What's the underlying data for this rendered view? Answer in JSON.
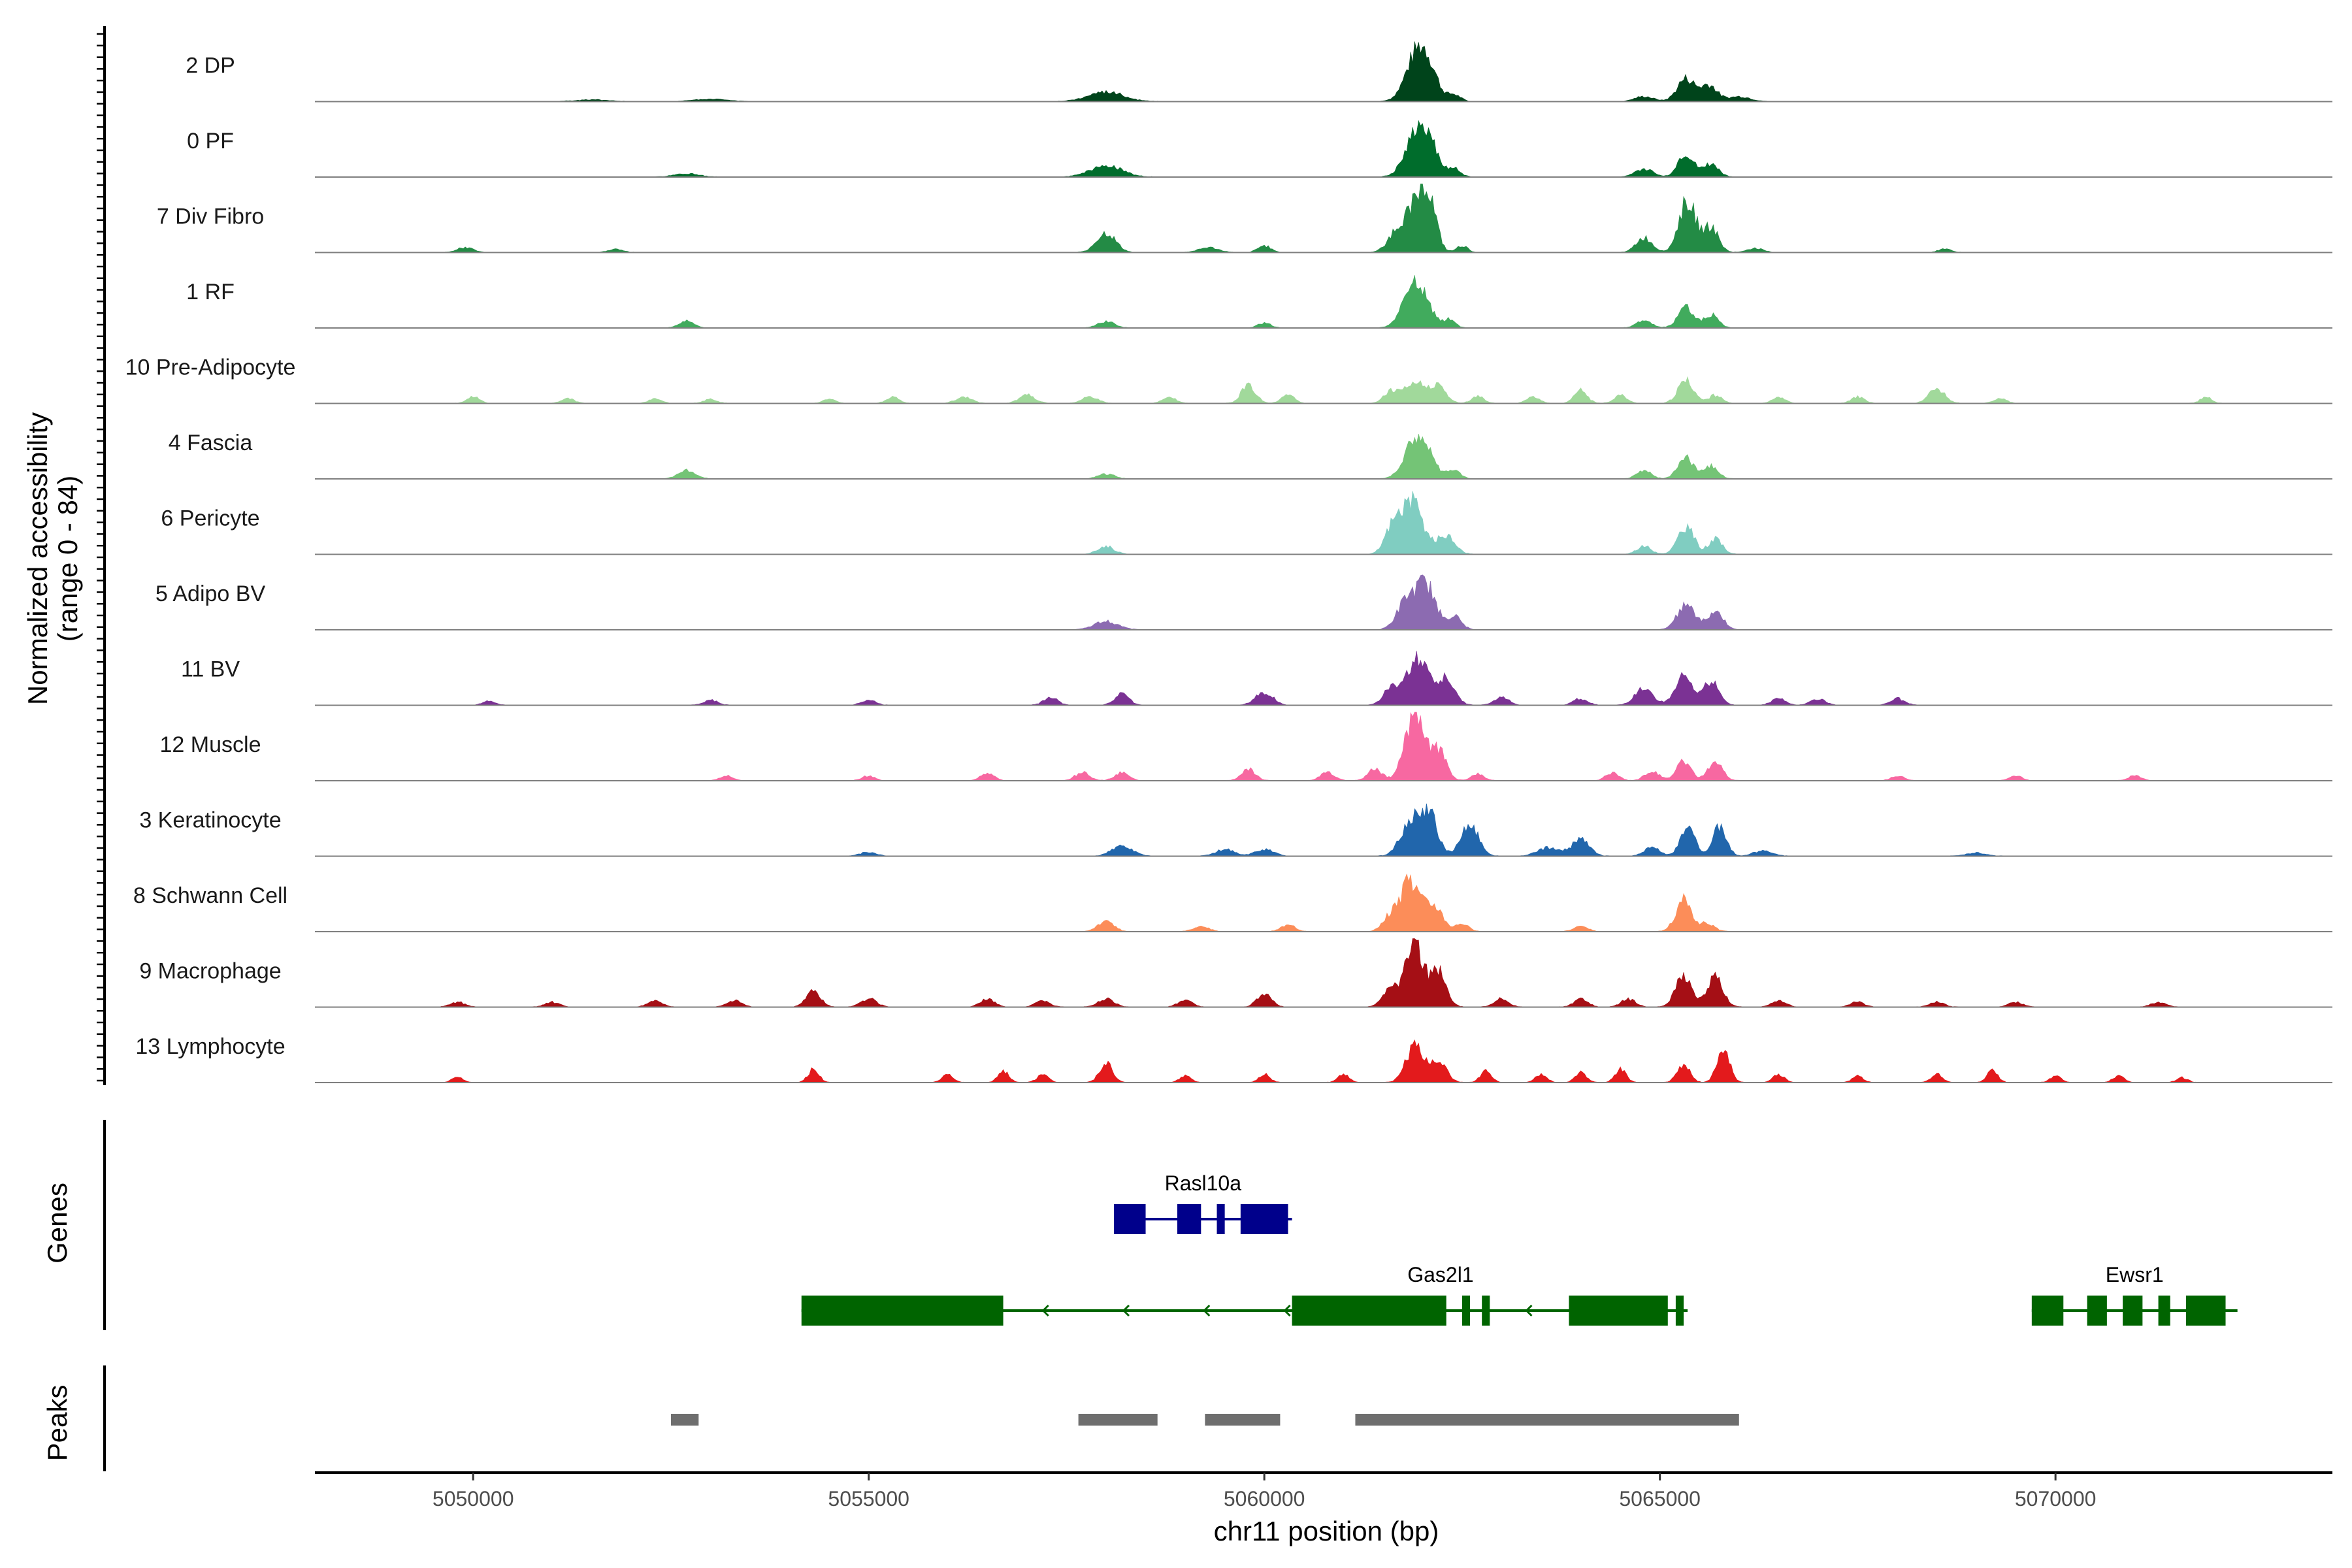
{
  "chart_data": {
    "type": "area",
    "title": "",
    "ylabel_line1": "Normalized accessibility",
    "ylabel_line2": "(range 0 - 84)",
    "yrange": [
      0,
      84
    ],
    "xlabel": "chr11 position (bp)",
    "xlim": [
      5048000,
      5073500
    ],
    "xticks": [
      5050000,
      5055000,
      5060000,
      5065000,
      5070000
    ],
    "xtick_labels": [
      "5050000",
      "5055000",
      "5060000",
      "5065000",
      "5070000"
    ],
    "genes_label": "Genes",
    "peaks_label": "Peaks",
    "tracks": [
      {
        "name": "2 DP",
        "color": "#00441b",
        "peaks": [
          [
            5058000,
            12,
            220
          ],
          [
            5061920,
            52,
            140
          ],
          [
            5062080,
            30,
            120
          ],
          [
            5062400,
            8,
            80
          ],
          [
            5064800,
            6,
            120
          ],
          [
            5065330,
            28,
            110
          ],
          [
            5065620,
            20,
            100
          ],
          [
            5066000,
            6,
            140
          ],
          [
            5053000,
            3,
            200
          ],
          [
            5051500,
            2,
            200
          ]
        ]
      },
      {
        "name": "0 PF",
        "color": "#006d2c",
        "peaks": [
          [
            5058000,
            14,
            200
          ],
          [
            5061920,
            50,
            140
          ],
          [
            5062100,
            28,
            110
          ],
          [
            5062400,
            10,
            80
          ],
          [
            5064800,
            10,
            110
          ],
          [
            5065330,
            28,
            100
          ],
          [
            5065640,
            16,
            100
          ],
          [
            5052700,
            4,
            150
          ]
        ]
      },
      {
        "name": "7 Div Fibro",
        "color": "#238b45",
        "peaks": [
          [
            5049900,
            6,
            100
          ],
          [
            5051800,
            4,
            90
          ],
          [
            5058000,
            24,
            120
          ],
          [
            5059300,
            6,
            120
          ],
          [
            5060000,
            8,
            80
          ],
          [
            5061700,
            30,
            120
          ],
          [
            5061950,
            66,
            110
          ],
          [
            5062100,
            45,
            90
          ],
          [
            5062500,
            8,
            70
          ],
          [
            5064800,
            18,
            100
          ],
          [
            5065350,
            62,
            110
          ],
          [
            5065650,
            30,
            90
          ],
          [
            5066200,
            5,
            100
          ],
          [
            5068600,
            4,
            80
          ]
        ]
      },
      {
        "name": "1 RF",
        "color": "#41ab5d",
        "peaks": [
          [
            5052700,
            8,
            90
          ],
          [
            5058000,
            8,
            100
          ],
          [
            5060000,
            6,
            80
          ],
          [
            5061920,
            56,
            150
          ],
          [
            5062350,
            10,
            70
          ],
          [
            5064800,
            8,
            100
          ],
          [
            5065330,
            24,
            100
          ],
          [
            5065650,
            16,
            90
          ]
        ]
      },
      {
        "name": "10 Pre-Adipocyte",
        "color": "#a1d99b",
        "peaks": [
          [
            5050000,
            8,
            80
          ],
          [
            5051200,
            6,
            80
          ],
          [
            5052300,
            6,
            80
          ],
          [
            5053000,
            5,
            80
          ],
          [
            5054500,
            5,
            80
          ],
          [
            5055300,
            8,
            80
          ],
          [
            5056200,
            8,
            100
          ],
          [
            5057000,
            10,
            100
          ],
          [
            5057800,
            8,
            100
          ],
          [
            5058800,
            8,
            80
          ],
          [
            5059800,
            22,
            90
          ],
          [
            5060300,
            10,
            80
          ],
          [
            5061600,
            14,
            90
          ],
          [
            5061900,
            28,
            120
          ],
          [
            5062200,
            20,
            100
          ],
          [
            5062700,
            8,
            80
          ],
          [
            5063400,
            8,
            80
          ],
          [
            5064000,
            16,
            80
          ],
          [
            5064500,
            10,
            80
          ],
          [
            5065330,
            28,
            100
          ],
          [
            5065700,
            10,
            80
          ],
          [
            5066500,
            8,
            80
          ],
          [
            5067500,
            8,
            80
          ],
          [
            5068500,
            18,
            100
          ],
          [
            5069300,
            6,
            80
          ],
          [
            5071900,
            8,
            70
          ]
        ]
      },
      {
        "name": "4 Fascia",
        "color": "#74c476",
        "peaks": [
          [
            5052700,
            10,
            110
          ],
          [
            5058000,
            6,
            100
          ],
          [
            5061950,
            54,
            150
          ],
          [
            5062400,
            10,
            80
          ],
          [
            5064800,
            10,
            90
          ],
          [
            5065330,
            26,
            100
          ],
          [
            5065650,
            16,
            90
          ]
        ]
      },
      {
        "name": "6 Pericyte",
        "color": "#80cdc1",
        "peaks": [
          [
            5058000,
            10,
            100
          ],
          [
            5061600,
            22,
            90
          ],
          [
            5061850,
            64,
            150
          ],
          [
            5062300,
            22,
            110
          ],
          [
            5064800,
            10,
            90
          ],
          [
            5065330,
            34,
            100
          ],
          [
            5065700,
            18,
            90
          ]
        ]
      },
      {
        "name": "5 Adipo BV",
        "color": "#8c6bb1",
        "peaks": [
          [
            5058000,
            10,
            150
          ],
          [
            5061800,
            34,
            120
          ],
          [
            5062050,
            52,
            120
          ],
          [
            5062400,
            16,
            90
          ],
          [
            5065330,
            30,
            110
          ],
          [
            5065700,
            22,
            100
          ]
        ]
      },
      {
        "name": "11 BV",
        "color": "#7b3294",
        "peaks": [
          [
            5050200,
            5,
            80
          ],
          [
            5053000,
            6,
            90
          ],
          [
            5055000,
            6,
            90
          ],
          [
            5057300,
            10,
            90
          ],
          [
            5058200,
            14,
            90
          ],
          [
            5060000,
            16,
            110
          ],
          [
            5061600,
            20,
            100
          ],
          [
            5061950,
            58,
            140
          ],
          [
            5062300,
            30,
            110
          ],
          [
            5063000,
            10,
            90
          ],
          [
            5064000,
            8,
            90
          ],
          [
            5064800,
            22,
            110
          ],
          [
            5065300,
            34,
            110
          ],
          [
            5065650,
            28,
            100
          ],
          [
            5066500,
            8,
            90
          ],
          [
            5067000,
            8,
            90
          ],
          [
            5068000,
            8,
            90
          ]
        ]
      },
      {
        "name": "12 Muscle",
        "color": "#f768a1",
        "peaks": [
          [
            5053200,
            6,
            80
          ],
          [
            5055000,
            6,
            80
          ],
          [
            5056500,
            8,
            90
          ],
          [
            5057700,
            10,
            90
          ],
          [
            5058200,
            10,
            90
          ],
          [
            5059800,
            14,
            90
          ],
          [
            5060800,
            10,
            90
          ],
          [
            5061400,
            14,
            90
          ],
          [
            5061900,
            82,
            120
          ],
          [
            5062200,
            36,
            100
          ],
          [
            5062700,
            8,
            80
          ],
          [
            5064400,
            10,
            80
          ],
          [
            5064900,
            12,
            90
          ],
          [
            5065300,
            24,
            90
          ],
          [
            5065700,
            24,
            90
          ],
          [
            5068000,
            6,
            80
          ],
          [
            5069500,
            6,
            80
          ],
          [
            5071000,
            6,
            80
          ]
        ]
      },
      {
        "name": "3 Keratinocyte",
        "color": "#2166ac",
        "peaks": [
          [
            5055000,
            5,
            100
          ],
          [
            5058200,
            12,
            130
          ],
          [
            5059500,
            8,
            120
          ],
          [
            5060000,
            8,
            120
          ],
          [
            5061850,
            38,
            130
          ],
          [
            5062080,
            48,
            110
          ],
          [
            5062600,
            38,
            110
          ],
          [
            5063600,
            10,
            140
          ],
          [
            5064000,
            20,
            110
          ],
          [
            5064900,
            10,
            100
          ],
          [
            5065350,
            36,
            90
          ],
          [
            5065750,
            34,
            90
          ],
          [
            5066300,
            6,
            120
          ],
          [
            5069000,
            4,
            120
          ]
        ]
      },
      {
        "name": "8 Schwann Cell",
        "color": "#fc8d59",
        "peaks": [
          [
            5058000,
            12,
            100
          ],
          [
            5059200,
            6,
            100
          ],
          [
            5060300,
            8,
            90
          ],
          [
            5061600,
            18,
            100
          ],
          [
            5061850,
            60,
            120
          ],
          [
            5062150,
            32,
            110
          ],
          [
            5062500,
            10,
            80
          ],
          [
            5064000,
            6,
            90
          ],
          [
            5065300,
            38,
            100
          ],
          [
            5065600,
            10,
            90
          ]
        ]
      },
      {
        "name": "9 Macrophage",
        "color": "#a50f15",
        "peaks": [
          [
            5049800,
            6,
            90
          ],
          [
            5051000,
            6,
            90
          ],
          [
            5052300,
            8,
            90
          ],
          [
            5053300,
            8,
            90
          ],
          [
            5054300,
            20,
            90
          ],
          [
            5055000,
            10,
            100
          ],
          [
            5056500,
            10,
            90
          ],
          [
            5057200,
            8,
            90
          ],
          [
            5058000,
            10,
            100
          ],
          [
            5059000,
            8,
            90
          ],
          [
            5060000,
            16,
            90
          ],
          [
            5061600,
            22,
            100
          ],
          [
            5061900,
            80,
            110
          ],
          [
            5062200,
            42,
            100
          ],
          [
            5063000,
            10,
            90
          ],
          [
            5064000,
            10,
            90
          ],
          [
            5064600,
            10,
            90
          ],
          [
            5065300,
            38,
            100
          ],
          [
            5065700,
            36,
            100
          ],
          [
            5066500,
            8,
            90
          ],
          [
            5067500,
            6,
            90
          ],
          [
            5068500,
            6,
            90
          ],
          [
            5069500,
            6,
            90
          ],
          [
            5071300,
            6,
            90
          ]
        ]
      },
      {
        "name": "13 Lymphocyte",
        "color": "#e31a1c",
        "peaks": [
          [
            5049800,
            6,
            70
          ],
          [
            5054300,
            16,
            70
          ],
          [
            5056000,
            10,
            70
          ],
          [
            5056700,
            14,
            70
          ],
          [
            5057200,
            10,
            70
          ],
          [
            5058000,
            24,
            80
          ],
          [
            5059000,
            8,
            70
          ],
          [
            5060000,
            10,
            70
          ],
          [
            5061000,
            10,
            70
          ],
          [
            5061900,
            44,
            110
          ],
          [
            5062200,
            26,
            100
          ],
          [
            5062800,
            14,
            70
          ],
          [
            5063500,
            10,
            70
          ],
          [
            5064000,
            12,
            70
          ],
          [
            5064500,
            16,
            70
          ],
          [
            5065300,
            22,
            80
          ],
          [
            5065800,
            40,
            80
          ],
          [
            5066500,
            10,
            70
          ],
          [
            5067500,
            8,
            70
          ],
          [
            5068500,
            10,
            70
          ],
          [
            5069200,
            14,
            70
          ],
          [
            5070000,
            8,
            70
          ],
          [
            5070800,
            8,
            70
          ],
          [
            5071600,
            6,
            70
          ]
        ]
      }
    ],
    "genes": [
      {
        "name": "Rasl10a",
        "color": "#00008b",
        "row": 0,
        "start": 5058100,
        "end": 5060350,
        "strand": "+",
        "exons": [
          [
            5058100,
            5058500
          ],
          [
            5058900,
            5059200
          ],
          [
            5059400,
            5059500
          ],
          [
            5059700,
            5060300
          ]
        ]
      },
      {
        "name": "Gas2l1",
        "color": "#006400",
        "row": 1,
        "start": 5054150,
        "end": 5065350,
        "strand": "-",
        "exons": [
          [
            5054150,
            5056700
          ],
          [
            5060350,
            5062300
          ],
          [
            5062500,
            5062600
          ],
          [
            5062750,
            5062850
          ],
          [
            5063850,
            5065100
          ],
          [
            5065200,
            5065300
          ]
        ]
      },
      {
        "name": "Ewsr1",
        "color": "#006400",
        "row": 1,
        "start": 5069700,
        "end": 5072300,
        "strand": "+",
        "exons": [
          [
            5069700,
            5070100
          ],
          [
            5070400,
            5070650
          ],
          [
            5070850,
            5071100
          ],
          [
            5071300,
            5071450
          ],
          [
            5071650,
            5072150
          ]
        ]
      }
    ],
    "peak_regions": [
      [
        5052500,
        5052850
      ],
      [
        5057650,
        5058650
      ],
      [
        5059250,
        5060200
      ],
      [
        5061150,
        5066000
      ]
    ]
  }
}
